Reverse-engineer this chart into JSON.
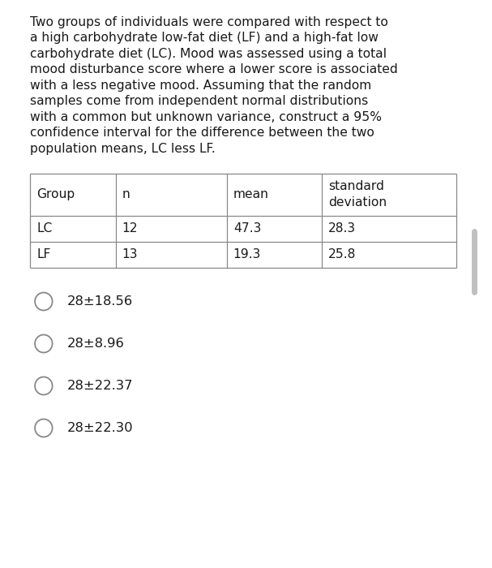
{
  "paragraph_lines": [
    "Two groups of individuals were compared with respect to",
    "a high carbohydrate low-fat diet (LF) and a high-fat low",
    "carbohydrate diet (LC). Mood was assessed using a total",
    "mood disturbance score where a lower score is associated",
    "with a less negative mood. Assuming that the random",
    "samples come from independent normal distributions",
    "with a common but unknown variance, construct a 95%",
    "confidence interval for the difference between the two",
    "population means, LC less LF."
  ],
  "table_headers": [
    "Group",
    "n",
    "mean",
    "standard\ndeviation"
  ],
  "table_rows": [
    [
      "LC",
      "12",
      "47.3",
      "28.3"
    ],
    [
      "LF",
      "13",
      "19.3",
      "25.8"
    ]
  ],
  "options": [
    "28±18.56",
    "28±8.96",
    "28±22.37",
    "28±22.30"
  ],
  "bg_color": "#ffffff",
  "text_color": "#1a1a1a",
  "border_color": "#888888",
  "font_size_paragraph": 11.2,
  "font_size_table": 11.2,
  "font_size_options": 11.8,
  "scrollbar_color": "#c0c0c0"
}
